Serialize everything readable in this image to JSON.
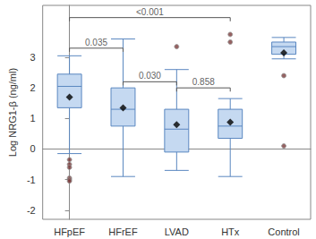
{
  "chart_data": {
    "type": "boxplot",
    "y_label": "Log NRG1-β (ng/ml)",
    "categories": [
      "HFpEF",
      "HFrEF",
      "LVAD",
      "HTx",
      "Control"
    ],
    "boxes": [
      [
        -0.15,
        1.35,
        2.05,
        2.45,
        3.05
      ],
      [
        -0.9,
        0.75,
        1.3,
        2.0,
        3.6
      ],
      [
        -0.7,
        -0.1,
        0.65,
        1.3,
        2.6
      ],
      [
        -0.9,
        0.35,
        0.75,
        1.3,
        1.65
      ],
      [
        2.95,
        3.1,
        3.35,
        3.5,
        3.65
      ]
    ],
    "means": [
      1.7,
      1.35,
      0.8,
      0.88,
      3.15
    ],
    "outliers": [
      [
        -0.35,
        -0.5,
        -0.6,
        -0.95,
        -1.0,
        -1.05
      ],
      [],
      [
        3.35
      ],
      [
        3.5,
        3.75
      ],
      [
        2.4,
        0.1
      ]
    ],
    "color": "#c5d9f1",
    "ylim": [
      -2.3,
      4.7
    ],
    "yticks": [
      -2,
      -1,
      0,
      1,
      2,
      3
    ],
    "grid": false,
    "annotations": [
      {
        "text": "<0.001",
        "from": "HFpEF",
        "to": "HTx",
        "y": 4.3
      },
      {
        "text": "0.035",
        "from": "HFpEF",
        "to": "HFrEF",
        "y": 3.3
      },
      {
        "text": "0.030",
        "from": "HFrEF",
        "to": "LVAD",
        "y": 2.2
      },
      {
        "text": "0.858",
        "from": "LVAD",
        "to": "HTx",
        "y": 2.0
      }
    ]
  }
}
